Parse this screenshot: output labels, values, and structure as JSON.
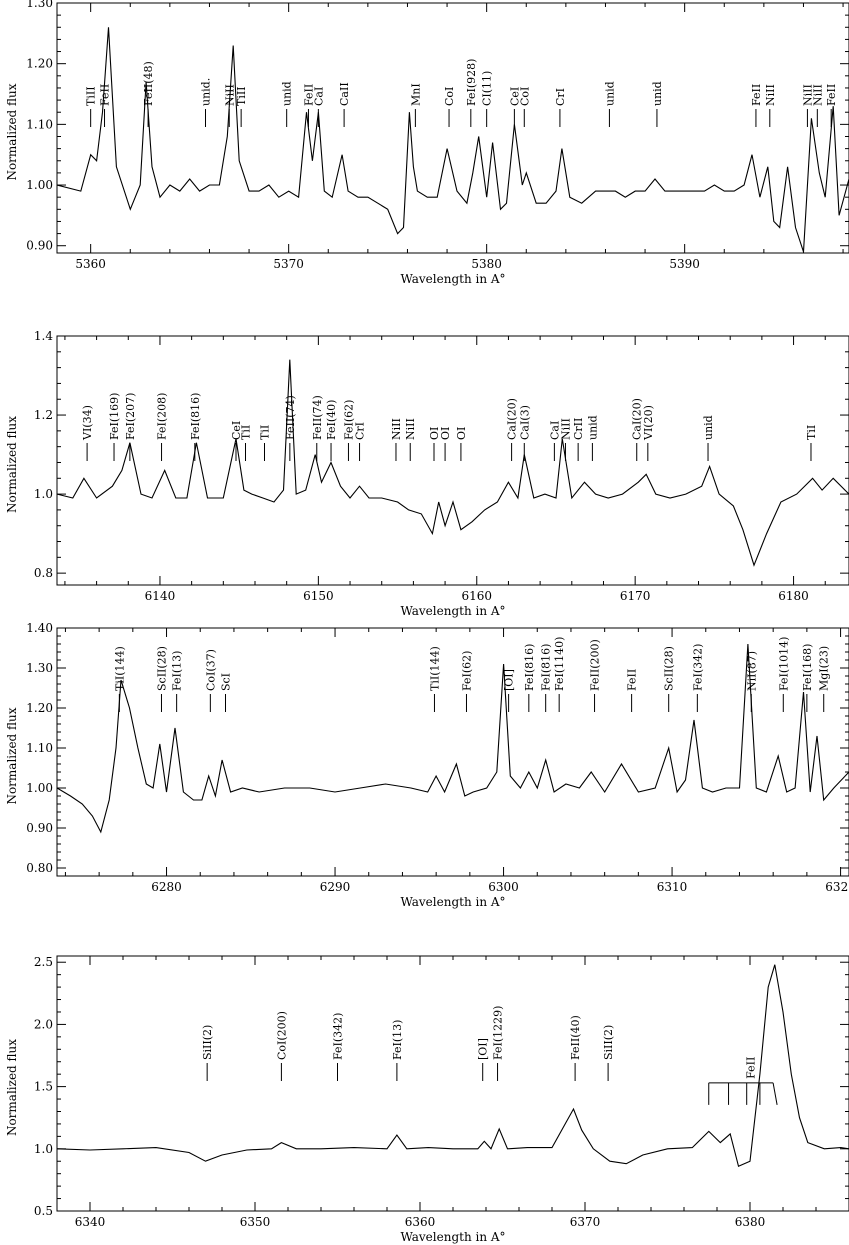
{
  "chart_data": [
    {
      "type": "line",
      "xlabel": "Wavelength in A°",
      "ylabel": "Normalized flux",
      "xlim": [
        5358.3,
        5398.3
      ],
      "ylim": [
        0.888,
        1.3
      ],
      "xticks": [
        5360,
        5370,
        5380,
        5390
      ],
      "yticks": [
        0.9,
        1.0,
        1.1,
        1.2,
        1.3
      ],
      "ytick_labels": [
        "0.90",
        "1.00",
        "1.10",
        "1.20",
        "1.30"
      ],
      "series": [
        {
          "x": [
            5358.3,
            5359.5,
            5360.0,
            5360.3,
            5360.6,
            5360.9,
            5361.3,
            5362.0,
            5362.5,
            5362.8,
            5363.1,
            5363.5,
            5364.0,
            5364.5,
            5365.0,
            5365.5,
            5366.0,
            5366.5,
            5366.9,
            5367.2,
            5367.5,
            5368.0,
            5368.5,
            5369.0,
            5369.5,
            5370.0,
            5370.5,
            5370.9,
            5371.2,
            5371.5,
            5371.8,
            5372.2,
            5372.7,
            5373.0,
            5373.5,
            5374.0,
            5374.5,
            5375.0,
            5375.5,
            5375.8,
            5376.1,
            5376.3,
            5376.5,
            5377.0,
            5377.5,
            5378.0,
            5378.5,
            5379.0,
            5379.3,
            5379.6,
            5380.0,
            5380.3,
            5380.7,
            5381.0,
            5381.4,
            5381.8,
            5382.0,
            5382.5,
            5383.0,
            5383.5,
            5383.8,
            5384.2,
            5384.8,
            5385.5,
            5386.0,
            5386.5,
            5387.0,
            5387.5,
            5388.0,
            5388.5,
            5389.0,
            5389.5,
            5390.0,
            5390.5,
            5391.0,
            5391.5,
            5392.0,
            5392.5,
            5393.0,
            5393.4,
            5393.8,
            5394.2,
            5394.5,
            5394.8,
            5395.2,
            5395.6,
            5396.0,
            5396.4,
            5396.8,
            5397.1,
            5397.5,
            5397.8,
            5398.3
          ],
          "y": [
            1.0,
            0.99,
            1.05,
            1.04,
            1.12,
            1.26,
            1.03,
            0.96,
            1.0,
            1.17,
            1.03,
            0.98,
            1.0,
            0.99,
            1.01,
            0.99,
            1.0,
            1.0,
            1.08,
            1.23,
            1.04,
            0.99,
            0.99,
            1.0,
            0.98,
            0.99,
            0.98,
            1.12,
            1.04,
            1.12,
            0.99,
            0.98,
            1.05,
            0.99,
            0.98,
            0.98,
            0.97,
            0.96,
            0.92,
            0.93,
            1.12,
            1.03,
            0.99,
            0.98,
            0.98,
            1.06,
            0.99,
            0.97,
            1.02,
            1.08,
            0.98,
            1.07,
            0.96,
            0.97,
            1.1,
            1.0,
            1.02,
            0.97,
            0.97,
            0.99,
            1.06,
            0.98,
            0.97,
            0.99,
            0.99,
            0.99,
            0.98,
            0.99,
            0.99,
            1.01,
            0.99,
            0.99,
            0.99,
            0.99,
            0.99,
            1.0,
            0.99,
            0.99,
            1.0,
            1.05,
            0.98,
            1.03,
            0.94,
            0.93,
            1.03,
            0.93,
            0.89,
            1.11,
            1.02,
            0.98,
            1.13,
            0.95,
            1.01
          ]
        }
      ],
      "lines": [
        {
          "x": 5360.0,
          "label": "TiII"
        },
        {
          "x": 5360.7,
          "label": "FeII"
        },
        {
          "x": 5362.9,
          "label": "FeII(48)"
        },
        {
          "x": 5365.8,
          "label": "unid."
        },
        {
          "x": 5367.0,
          "label": "NiII"
        },
        {
          "x": 5367.6,
          "label": "TiII"
        },
        {
          "x": 5369.9,
          "label": "unid"
        },
        {
          "x": 5371.0,
          "label": "FeII"
        },
        {
          "x": 5371.5,
          "label": "CaI"
        },
        {
          "x": 5372.8,
          "label": "CaII"
        },
        {
          "x": 5376.4,
          "label": "MnI"
        },
        {
          "x": 5378.1,
          "label": "CoI"
        },
        {
          "x": 5379.2,
          "label": "FeI(928)"
        },
        {
          "x": 5380.0,
          "label": "CI(11)"
        },
        {
          "x": 5381.4,
          "label": "CeI"
        },
        {
          "x": 5381.9,
          "label": "CoI"
        },
        {
          "x": 5383.7,
          "label": "CrI"
        },
        {
          "x": 5386.2,
          "label": "unid"
        },
        {
          "x": 5388.6,
          "label": "unid"
        },
        {
          "x": 5393.6,
          "label": "FeII"
        },
        {
          "x": 5394.3,
          "label": "NiII"
        },
        {
          "x": 5396.2,
          "label": "NiII"
        },
        {
          "x": 5396.7,
          "label": "NiII"
        },
        {
          "x": 5397.4,
          "label": "FeII"
        }
      ]
    },
    {
      "type": "line",
      "xlabel": "Wavelength in A°",
      "ylabel": "Normalized flux",
      "xlim": [
        6133.5,
        6183.5
      ],
      "ylim": [
        0.77,
        1.4
      ],
      "xticks": [
        6140,
        6150,
        6160,
        6170,
        6180
      ],
      "yticks": [
        0.8,
        1.0,
        1.2,
        1.4
      ],
      "ytick_labels": [
        "0.8",
        "1.0",
        "1.2",
        "1.4"
      ],
      "series": [
        {
          "x": [
            6133.5,
            6134.5,
            6135.2,
            6136.0,
            6137.0,
            6137.6,
            6138.1,
            6138.8,
            6139.5,
            6140.3,
            6141.0,
            6141.7,
            6142.3,
            6143.0,
            6144.0,
            6144.8,
            6145.3,
            6145.8,
            6146.5,
            6147.2,
            6147.8,
            6148.2,
            6148.6,
            6149.2,
            6149.8,
            6150.2,
            6150.8,
            6151.4,
            6152.0,
            6152.6,
            6153.2,
            6154.0,
            6155.0,
            6155.7,
            6156.5,
            6157.2,
            6157.6,
            6158.0,
            6158.5,
            6159.0,
            6159.7,
            6160.5,
            6161.3,
            6162.0,
            6162.6,
            6163.0,
            6163.6,
            6164.3,
            6165.0,
            6165.4,
            6166.0,
            6166.8,
            6167.5,
            6168.3,
            6169.2,
            6170.2,
            6170.7,
            6171.3,
            6172.2,
            6173.2,
            6174.2,
            6174.7,
            6175.3,
            6176.2,
            6176.8,
            6177.5,
            6178.3,
            6179.2,
            6180.2,
            6181.2,
            6181.8,
            6182.5,
            6183.5
          ],
          "y": [
            1.0,
            0.99,
            1.04,
            0.99,
            1.02,
            1.06,
            1.13,
            1.0,
            0.99,
            1.06,
            0.99,
            0.99,
            1.13,
            0.99,
            0.99,
            1.14,
            1.01,
            1.0,
            0.99,
            0.98,
            1.01,
            1.34,
            1.0,
            1.01,
            1.1,
            1.03,
            1.08,
            1.02,
            0.99,
            1.02,
            0.99,
            0.99,
            0.98,
            0.96,
            0.95,
            0.9,
            0.98,
            0.92,
            0.98,
            0.91,
            0.93,
            0.96,
            0.98,
            1.03,
            0.99,
            1.1,
            0.99,
            1.0,
            0.99,
            1.14,
            0.99,
            1.03,
            1.0,
            0.99,
            1.0,
            1.03,
            1.05,
            1.0,
            0.99,
            1.0,
            1.02,
            1.07,
            1.0,
            0.97,
            0.91,
            0.82,
            0.9,
            0.98,
            1.0,
            1.04,
            1.01,
            1.04,
            1.0
          ]
        }
      ],
      "lines": [
        {
          "x": 6135.4,
          "label": "VI(34)"
        },
        {
          "x": 6137.1,
          "label": "FeI(169)"
        },
        {
          "x": 6138.1,
          "label": "FeI(207)"
        },
        {
          "x": 6140.1,
          "label": "FeI(208)"
        },
        {
          "x": 6142.2,
          "label": "FeI(816)"
        },
        {
          "x": 6144.8,
          "label": "CeI"
        },
        {
          "x": 6145.4,
          "label": "TiI"
        },
        {
          "x": 6146.6,
          "label": "TiI"
        },
        {
          "x": 6148.2,
          "label": "FeII(74)"
        },
        {
          "x": 6149.9,
          "label": "FeII(74)"
        },
        {
          "x": 6150.8,
          "label": "FeI(40)"
        },
        {
          "x": 6151.9,
          "label": "FeI(62)"
        },
        {
          "x": 6152.6,
          "label": "CrI"
        },
        {
          "x": 6154.9,
          "label": "NiII"
        },
        {
          "x": 6155.8,
          "label": "NiII"
        },
        {
          "x": 6157.3,
          "label": "OI"
        },
        {
          "x": 6158.0,
          "label": "OI"
        },
        {
          "x": 6159.0,
          "label": "OI"
        },
        {
          "x": 6162.2,
          "label": "CaI(20)"
        },
        {
          "x": 6163.0,
          "label": "CaI(3)"
        },
        {
          "x": 6164.9,
          "label": "CaI"
        },
        {
          "x": 6165.6,
          "label": "NiII"
        },
        {
          "x": 6166.4,
          "label": "CrII"
        },
        {
          "x": 6167.3,
          "label": "unid"
        },
        {
          "x": 6170.1,
          "label": "CaI(20)"
        },
        {
          "x": 6170.8,
          "label": "VI(20)"
        },
        {
          "x": 6174.6,
          "label": "unid"
        },
        {
          "x": 6181.1,
          "label": "TiI"
        }
      ]
    },
    {
      "type": "line",
      "xlabel": "Wavelength in A°",
      "ylabel": "Normalized flux",
      "xlim": [
        6273.5,
        6320.5
      ],
      "ylim": [
        0.78,
        1.4
      ],
      "xticks": [
        6280,
        6290,
        6300,
        6310,
        6320
      ],
      "yticks": [
        0.8,
        0.9,
        1.0,
        1.1,
        1.2,
        1.3,
        1.4
      ],
      "ytick_labels": [
        "0.80",
        "0.90",
        "1.00",
        "1.10",
        "1.20",
        "1.30",
        "1.40"
      ],
      "series": [
        {
          "x": [
            6273.5,
            6274.3,
            6275.0,
            6275.6,
            6276.1,
            6276.6,
            6277.0,
            6277.3,
            6277.8,
            6278.3,
            6278.8,
            6279.2,
            6279.6,
            6280.0,
            6280.5,
            6281.0,
            6281.6,
            6282.1,
            6282.5,
            6282.9,
            6283.3,
            6283.8,
            6284.5,
            6285.5,
            6287.0,
            6288.5,
            6290.0,
            6291.5,
            6293.0,
            6294.5,
            6295.5,
            6296.0,
            6296.5,
            6297.2,
            6297.7,
            6298.2,
            6299.0,
            6299.6,
            6300.0,
            6300.4,
            6301.0,
            6301.5,
            6302.0,
            6302.5,
            6303.0,
            6303.7,
            6304.5,
            6305.2,
            6306.0,
            6307.0,
            6308.0,
            6309.0,
            6309.8,
            6310.3,
            6310.8,
            6311.3,
            6311.8,
            6312.4,
            6313.2,
            6314.0,
            6314.5,
            6315.0,
            6315.6,
            6316.3,
            6316.8,
            6317.3,
            6317.8,
            6318.2,
            6318.6,
            6319.0,
            6319.6,
            6320.5
          ],
          "y": [
            1.0,
            0.98,
            0.96,
            0.93,
            0.89,
            0.97,
            1.1,
            1.27,
            1.2,
            1.1,
            1.01,
            1.0,
            1.11,
            0.99,
            1.15,
            0.99,
            0.97,
            0.97,
            1.03,
            0.98,
            1.07,
            0.99,
            1.0,
            0.99,
            1.0,
            1.0,
            0.99,
            1.0,
            1.01,
            1.0,
            0.99,
            1.03,
            0.99,
            1.06,
            0.98,
            0.99,
            1.0,
            1.04,
            1.31,
            1.03,
            1.0,
            1.04,
            1.0,
            1.07,
            0.99,
            1.01,
            1.0,
            1.04,
            0.99,
            1.06,
            0.99,
            1.0,
            1.1,
            0.99,
            1.02,
            1.17,
            1.0,
            0.99,
            1.0,
            1.0,
            1.36,
            1.0,
            0.99,
            1.08,
            0.99,
            1.0,
            1.24,
            0.99,
            1.13,
            0.97,
            1.0,
            1.04
          ]
        }
      ],
      "lines": [
        {
          "x": 6277.2,
          "label": "TiI(144)"
        },
        {
          "x": 6279.7,
          "label": "ScII(28)"
        },
        {
          "x": 6280.6,
          "label": "FeI(13)"
        },
        {
          "x": 6282.6,
          "label": "CoI(37)"
        },
        {
          "x": 6283.5,
          "label": "ScI"
        },
        {
          "x": 6295.9,
          "label": "TiI(144)"
        },
        {
          "x": 6297.8,
          "label": "FeI(62)"
        },
        {
          "x": 6300.3,
          "label": "[OI]"
        },
        {
          "x": 6301.5,
          "label": "FeI(816)"
        },
        {
          "x": 6302.5,
          "label": "FeI(816)"
        },
        {
          "x": 6303.3,
          "label": "FeI(1140)"
        },
        {
          "x": 6305.4,
          "label": "FeII(200)"
        },
        {
          "x": 6307.6,
          "label": "FeII"
        },
        {
          "x": 6309.8,
          "label": "ScII(28)"
        },
        {
          "x": 6311.5,
          "label": "FeI(342)"
        },
        {
          "x": 6314.7,
          "label": "NiI(87)"
        },
        {
          "x": 6316.6,
          "label": "FeI(1014)"
        },
        {
          "x": 6318.0,
          "label": "FeI(168)"
        },
        {
          "x": 6319.0,
          "label": "MgI(23)"
        }
      ]
    },
    {
      "type": "line",
      "xlabel": "Wavelength in A°",
      "ylabel": "Normalized flux",
      "xlim": [
        6338.0,
        6386.0
      ],
      "ylim": [
        0.5,
        2.55
      ],
      "xticks": [
        6340,
        6350,
        6360,
        6370,
        6380
      ],
      "yticks": [
        0.5,
        1.0,
        1.5,
        2.0,
        2.5
      ],
      "ytick_labels": [
        "0.5",
        "1.0",
        "1.5",
        "2.0",
        "2.5"
      ],
      "series": [
        {
          "x": [
            6338.0,
            6340.0,
            6342.0,
            6344.0,
            6346.0,
            6347.0,
            6348.0,
            6349.5,
            6351.0,
            6351.6,
            6352.5,
            6354.0,
            6356.0,
            6358.0,
            6358.6,
            6359.2,
            6360.5,
            6362.0,
            6363.5,
            6363.9,
            6364.3,
            6364.8,
            6365.3,
            6366.5,
            6368.0,
            6368.8,
            6369.3,
            6369.8,
            6370.5,
            6371.5,
            6372.5,
            6373.5,
            6375.0,
            6376.5,
            6377.5,
            6378.2,
            6378.8,
            6379.3,
            6380.0,
            6380.6,
            6381.1,
            6381.5,
            6382.0,
            6382.5,
            6383.0,
            6383.5,
            6384.5,
            6385.5,
            6386.0
          ],
          "y": [
            1.0,
            0.99,
            1.0,
            1.01,
            0.97,
            0.9,
            0.95,
            0.99,
            1.0,
            1.05,
            1.0,
            1.0,
            1.01,
            1.0,
            1.11,
            1.0,
            1.01,
            1.0,
            1.0,
            1.06,
            1.0,
            1.16,
            1.0,
            1.01,
            1.01,
            1.2,
            1.32,
            1.15,
            1.0,
            0.9,
            0.88,
            0.95,
            1.0,
            1.01,
            1.14,
            1.05,
            1.12,
            0.86,
            0.9,
            1.6,
            2.3,
            2.48,
            2.1,
            1.6,
            1.25,
            1.05,
            1.0,
            1.01,
            1.0
          ]
        }
      ],
      "lines": [
        {
          "x": 6347.1,
          "label": "SiII(2)"
        },
        {
          "x": 6351.6,
          "label": "CoI(200)"
        },
        {
          "x": 6355.0,
          "label": "FeI(342)"
        },
        {
          "x": 6358.6,
          "label": "FeI(13)"
        },
        {
          "x": 6363.8,
          "label": "[OI]"
        },
        {
          "x": 6364.7,
          "label": "FeI(1229)"
        },
        {
          "x": 6369.4,
          "label": "FeII(40)"
        },
        {
          "x": 6371.4,
          "label": "SiII(2)"
        }
      ],
      "bracket": {
        "label": "FeII",
        "top": 1.53,
        "x": [
          6377.5,
          6378.7,
          6379.8,
          6380.6,
          6381.4
        ]
      }
    }
  ]
}
